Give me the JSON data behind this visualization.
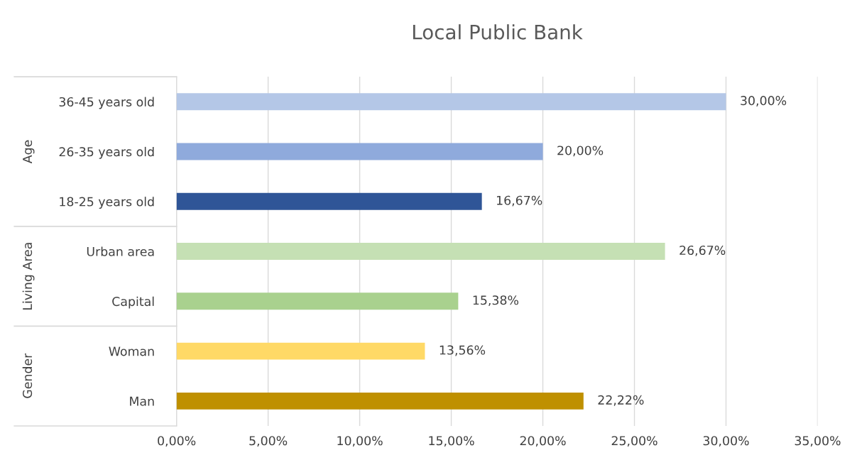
{
  "chart_data": {
    "type": "bar",
    "orientation": "horizontal",
    "title": "Local Public Bank",
    "categories": [
      "36-45 years old",
      "26-35 years old",
      "18-25 years old",
      "Urban area",
      "Capital",
      "Woman",
      "Man"
    ],
    "values": [
      30,
      20,
      16.67,
      26.67,
      15.38,
      13.56,
      22.22
    ],
    "colors": [
      "#b4c7e7",
      "#8faadc",
      "#2f5597",
      "#c5e0b4",
      "#a9d18e",
      "#ffd966",
      "#bf9000"
    ],
    "value_labels": [
      "30,00%",
      "20,00%",
      "16,67%",
      "26,67%",
      "15,38%",
      "13,56%",
      "22,22%"
    ],
    "annotations": [
      "Age",
      "Living Area",
      "Gender"
    ],
    "xlim": [
      0,
      35
    ],
    "xticks": [
      {
        "value": 0,
        "label": "0,00%"
      },
      {
        "value": 5,
        "label": "5,00%"
      },
      {
        "value": 10,
        "label": "10,00%"
      },
      {
        "value": 15,
        "label": "15,00%"
      },
      {
        "value": 20,
        "label": "20,00%"
      },
      {
        "value": 25,
        "label": "25,00%"
      },
      {
        "value": 30,
        "label": "30,00%"
      },
      {
        "value": 35,
        "label": "35,00%"
      }
    ],
    "grid": "x",
    "legend": false
  }
}
